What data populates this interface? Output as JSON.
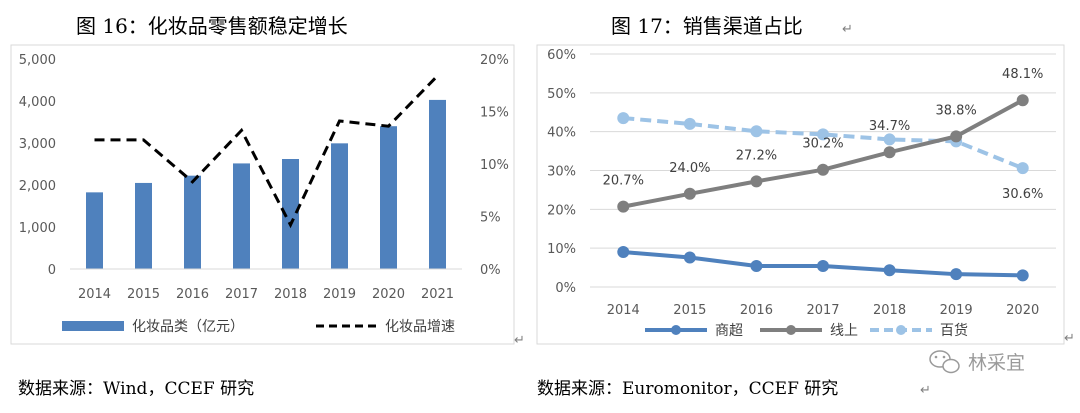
{
  "chart_data": [
    {
      "type": "bar",
      "title": "图 16：化妆品零售额稳定增长",
      "categories": [
        "2014",
        "2015",
        "2016",
        "2017",
        "2018",
        "2019",
        "2020",
        "2021"
      ],
      "series": [
        {
          "name": "化妆品类（亿元）",
          "type": "bar",
          "axis": "left",
          "color": "#4f81bd",
          "values": [
            1825,
            2049,
            2222,
            2514,
            2619,
            2992,
            3400,
            4026
          ]
        },
        {
          "name": "化妆品增速",
          "type": "line",
          "axis": "right",
          "style": "dashed",
          "color": "#000000",
          "values": [
            0.123,
            0.123,
            0.083,
            0.132,
            0.042,
            0.141,
            0.136,
            0.184
          ]
        }
      ],
      "ylim_left": [
        0,
        5000
      ],
      "yticks_left": [
        "0",
        "1,000",
        "2,000",
        "3,000",
        "4,000",
        "5,000"
      ],
      "ylim_right": [
        0,
        0.2
      ],
      "yticks_right": [
        "0%",
        "5%",
        "10%",
        "15%",
        "20%"
      ],
      "grid": false,
      "legend": "bottom",
      "source": "数据来源：Wind，CCEF 研究"
    },
    {
      "type": "line",
      "title": "图 17：销售渠道占比",
      "categories": [
        "2014",
        "2015",
        "2016",
        "2017",
        "2018",
        "2019",
        "2020"
      ],
      "series": [
        {
          "name": "商超",
          "color": "#4f81bd",
          "style": "solid",
          "values": [
            0.09,
            0.076,
            0.054,
            0.054,
            0.043,
            0.033,
            0.03
          ]
        },
        {
          "name": "线上",
          "color": "#7f7f7f",
          "style": "solid",
          "values": [
            0.207,
            0.24,
            0.272,
            0.302,
            0.347,
            0.388,
            0.481
          ],
          "labels": [
            "20.7%",
            "24.0%",
            "27.2%",
            "30.2%",
            "34.7%",
            "38.8%",
            "48.1%"
          ]
        },
        {
          "name": "百货",
          "color": "#9dc3e6",
          "style": "dashed",
          "values": [
            0.435,
            0.42,
            0.401,
            0.393,
            0.38,
            0.375,
            0.306
          ],
          "labels": [
            "",
            "",
            "",
            "",
            "",
            "",
            "30.6%"
          ]
        }
      ],
      "ylim": [
        0,
        0.6
      ],
      "yticks": [
        "0%",
        "10%",
        "20%",
        "30%",
        "40%",
        "50%",
        "60%"
      ],
      "grid": true,
      "legend": "bottom",
      "source": "数据来源：Euromonitor，CCEF 研究"
    }
  ],
  "watermark": "林采宜",
  "return_mark": "↵"
}
